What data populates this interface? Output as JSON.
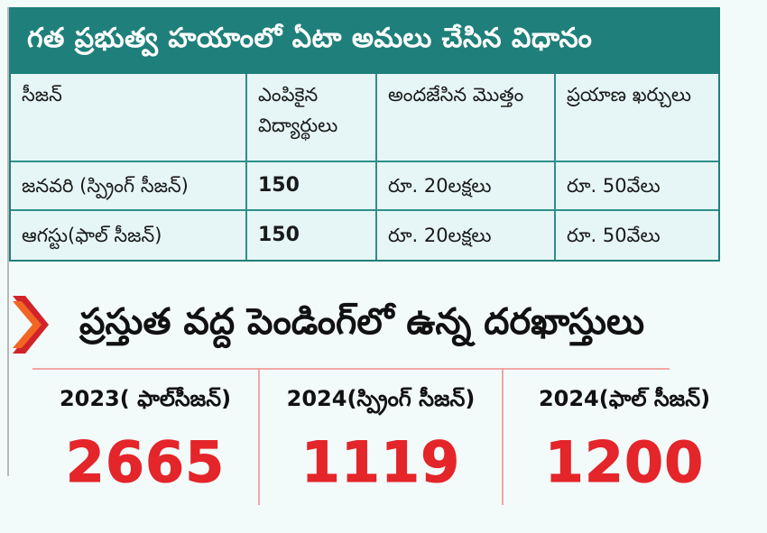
{
  "table": {
    "title": "గత ప్రభుత్వ హయాంలో ఏటా అమలు చేసిన విధానం",
    "headers": [
      "సీజన్",
      "ఎంపికైన విద్యార్థులు",
      "అందజేసిన మొత్తం",
      "ప్రయాణ ఖర్చులు"
    ],
    "rows": [
      [
        "జనవరి (స్ప్రింగ్ సీజన్)",
        "150",
        "రూ. 20లక్షలు",
        "రూ. 50వేలు"
      ],
      [
        "ఆగస్టు(ఫాల్ సీజన్)",
        "150",
        "రూ. 20లక్షలు",
        "రూ. 50వేలు"
      ]
    ]
  },
  "pending": {
    "title": "ప్రస్తుత వద్ద పెండింగ్‌లో ఉన్న దరఖాస్తులు",
    "stats": [
      {
        "label": "2023( ఫాల్‌సీజన్)",
        "value": "2665"
      },
      {
        "label": "2024(స్ప్రింగ్ సీజన్)",
        "value": "1119"
      },
      {
        "label": "2024(ఫాల్ సీజన్)",
        "value": "1200"
      }
    ]
  },
  "colors": {
    "header_bg": "#1f7f7b",
    "table_bg": "#e6f6f6",
    "accent_red": "#e4252a",
    "chevron_orange": "#f26522",
    "chevron_red": "#d2232a"
  }
}
